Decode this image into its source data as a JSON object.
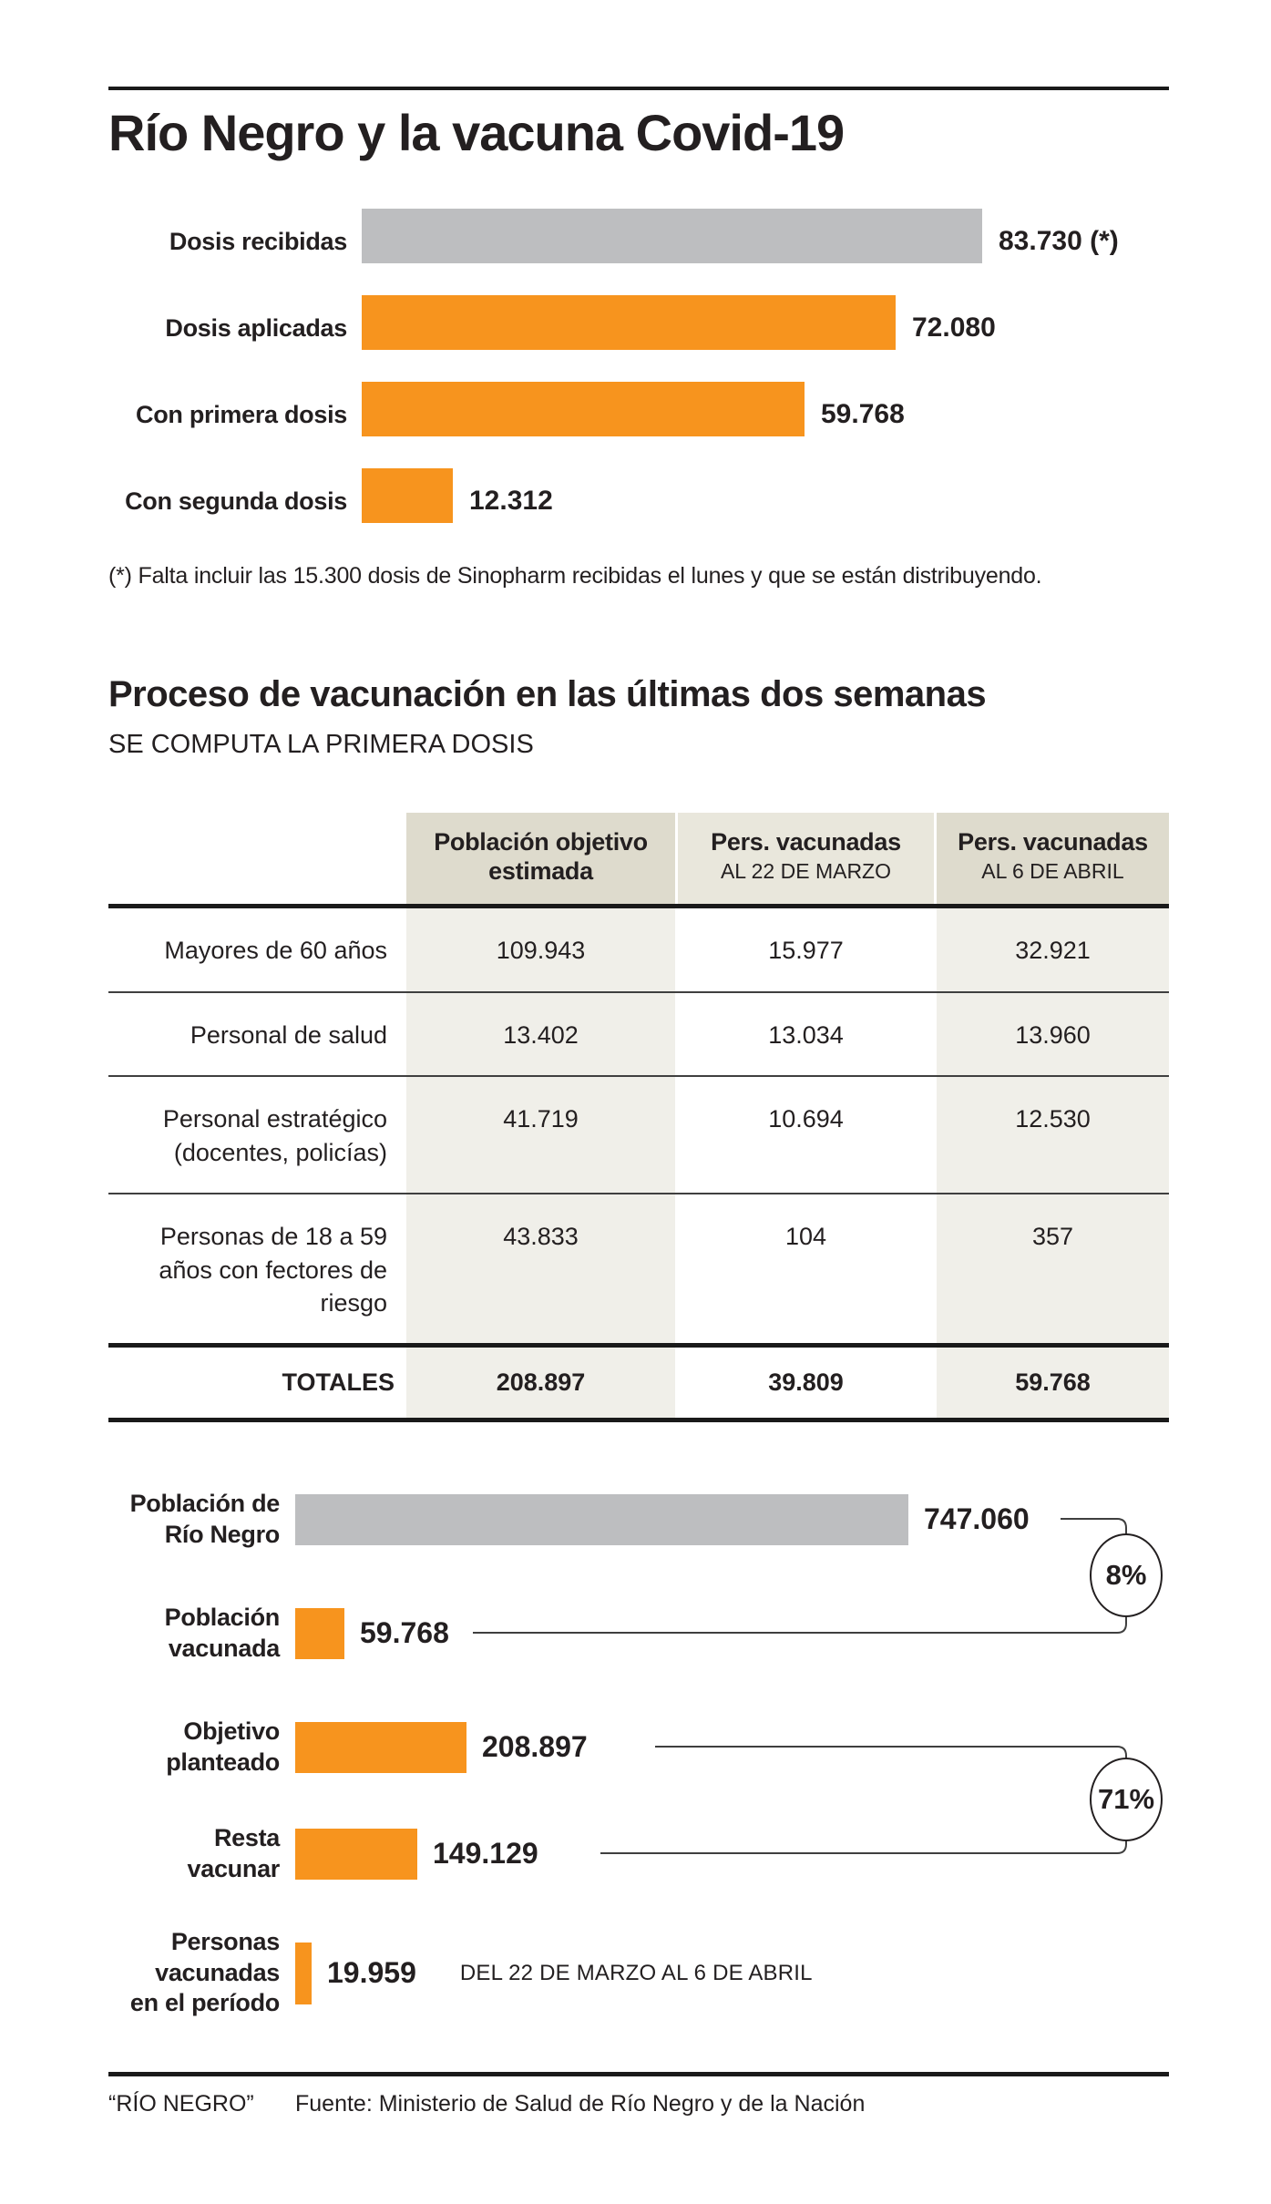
{
  "title": "Río Negro y la vacuna Covid-19",
  "colors": {
    "orange": "#F7941E",
    "gray": "#BDBEC0",
    "ink": "#231F20",
    "table_header_dark": "#DEDBCD",
    "table_header_mid": "#E9E7DC",
    "table_body_tint": "#F0EFE9"
  },
  "chart_data": [
    {
      "id": "doses",
      "type": "bar",
      "orientation": "horizontal",
      "max_value": 83730,
      "rows": [
        {
          "label": "Dosis recibidas",
          "value": 83730,
          "value_label": "83.730 (*)",
          "color": "#BDBEC0"
        },
        {
          "label": "Dosis aplicadas",
          "value": 72080,
          "value_label": "72.080",
          "color": "#F7941E"
        },
        {
          "label": "Con primera dosis",
          "value": 59768,
          "value_label": "59.768",
          "color": "#F7941E"
        },
        {
          "label": "Con segunda dosis",
          "value": 12312,
          "value_label": "12.312",
          "color": "#F7941E"
        }
      ],
      "footnote": "(*) Falta incluir las 15.300 dosis de Sinopharm recibidas el lunes y que se están distribuyendo."
    },
    {
      "id": "process-table",
      "type": "table",
      "title": "Proceso de vacunación en las últimas dos semanas",
      "subtitle": "SE COMPUTA LA PRIMERA DOSIS",
      "columns": [
        {
          "label": "Población objetivo estimada",
          "sublabel": ""
        },
        {
          "label": "Pers. vacunadas",
          "sublabel": "AL 22 DE MARZO"
        },
        {
          "label": "Pers. vacunadas",
          "sublabel": "AL 6 DE ABRIL"
        }
      ],
      "rows": [
        {
          "label": "Mayores de 60 años",
          "values": [
            "109.943",
            "15.977",
            "32.921"
          ]
        },
        {
          "label": "Personal de salud",
          "values": [
            "13.402",
            "13.034",
            "13.960"
          ]
        },
        {
          "label": "Personal estratégico (docentes, policías)",
          "values": [
            "41.719",
            "10.694",
            "12.530"
          ]
        },
        {
          "label": "Personas de 18 a 59 años con fectores de riesgo",
          "values": [
            "43.833",
            "104",
            "357"
          ]
        }
      ],
      "totals": {
        "label": "TOTALES",
        "values": [
          "208.897",
          "39.809",
          "59.768"
        ]
      }
    },
    {
      "id": "coverage",
      "type": "bar",
      "orientation": "horizontal",
      "max_value": 747060,
      "rows": [
        {
          "lines": [
            "Población de",
            "Río Negro"
          ],
          "value": 747060,
          "value_label": "747.060",
          "color": "#BDBEC0"
        },
        {
          "lines": [
            "Población",
            "vacunada"
          ],
          "value": 59768,
          "value_label": "59.768",
          "color": "#F7941E"
        },
        {
          "lines": [
            "Objetivo",
            "planteado"
          ],
          "value": 208897,
          "value_label": "208.897",
          "color": "#F7941E"
        },
        {
          "lines": [
            "Resta",
            "vacunar"
          ],
          "value": 149129,
          "value_label": "149.129",
          "color": "#F7941E"
        },
        {
          "lines": [
            "Personas",
            "vacunadas",
            "en el período"
          ],
          "value": 19959,
          "value_label": "19.959",
          "color": "#F7941E",
          "note": "DEL 22 DE MARZO AL 6 DE ABRIL"
        }
      ],
      "annotations": [
        {
          "text": "8%",
          "links": [
            "Población de Río Negro",
            "Población vacunada"
          ]
        },
        {
          "text": "71%",
          "links": [
            "Objetivo planteado",
            "Resta vacunar"
          ]
        }
      ]
    }
  ],
  "footer": {
    "brand": "“RÍO NEGRO”",
    "source": "Fuente: Ministerio de Salud de Río Negro y de la Nación"
  }
}
